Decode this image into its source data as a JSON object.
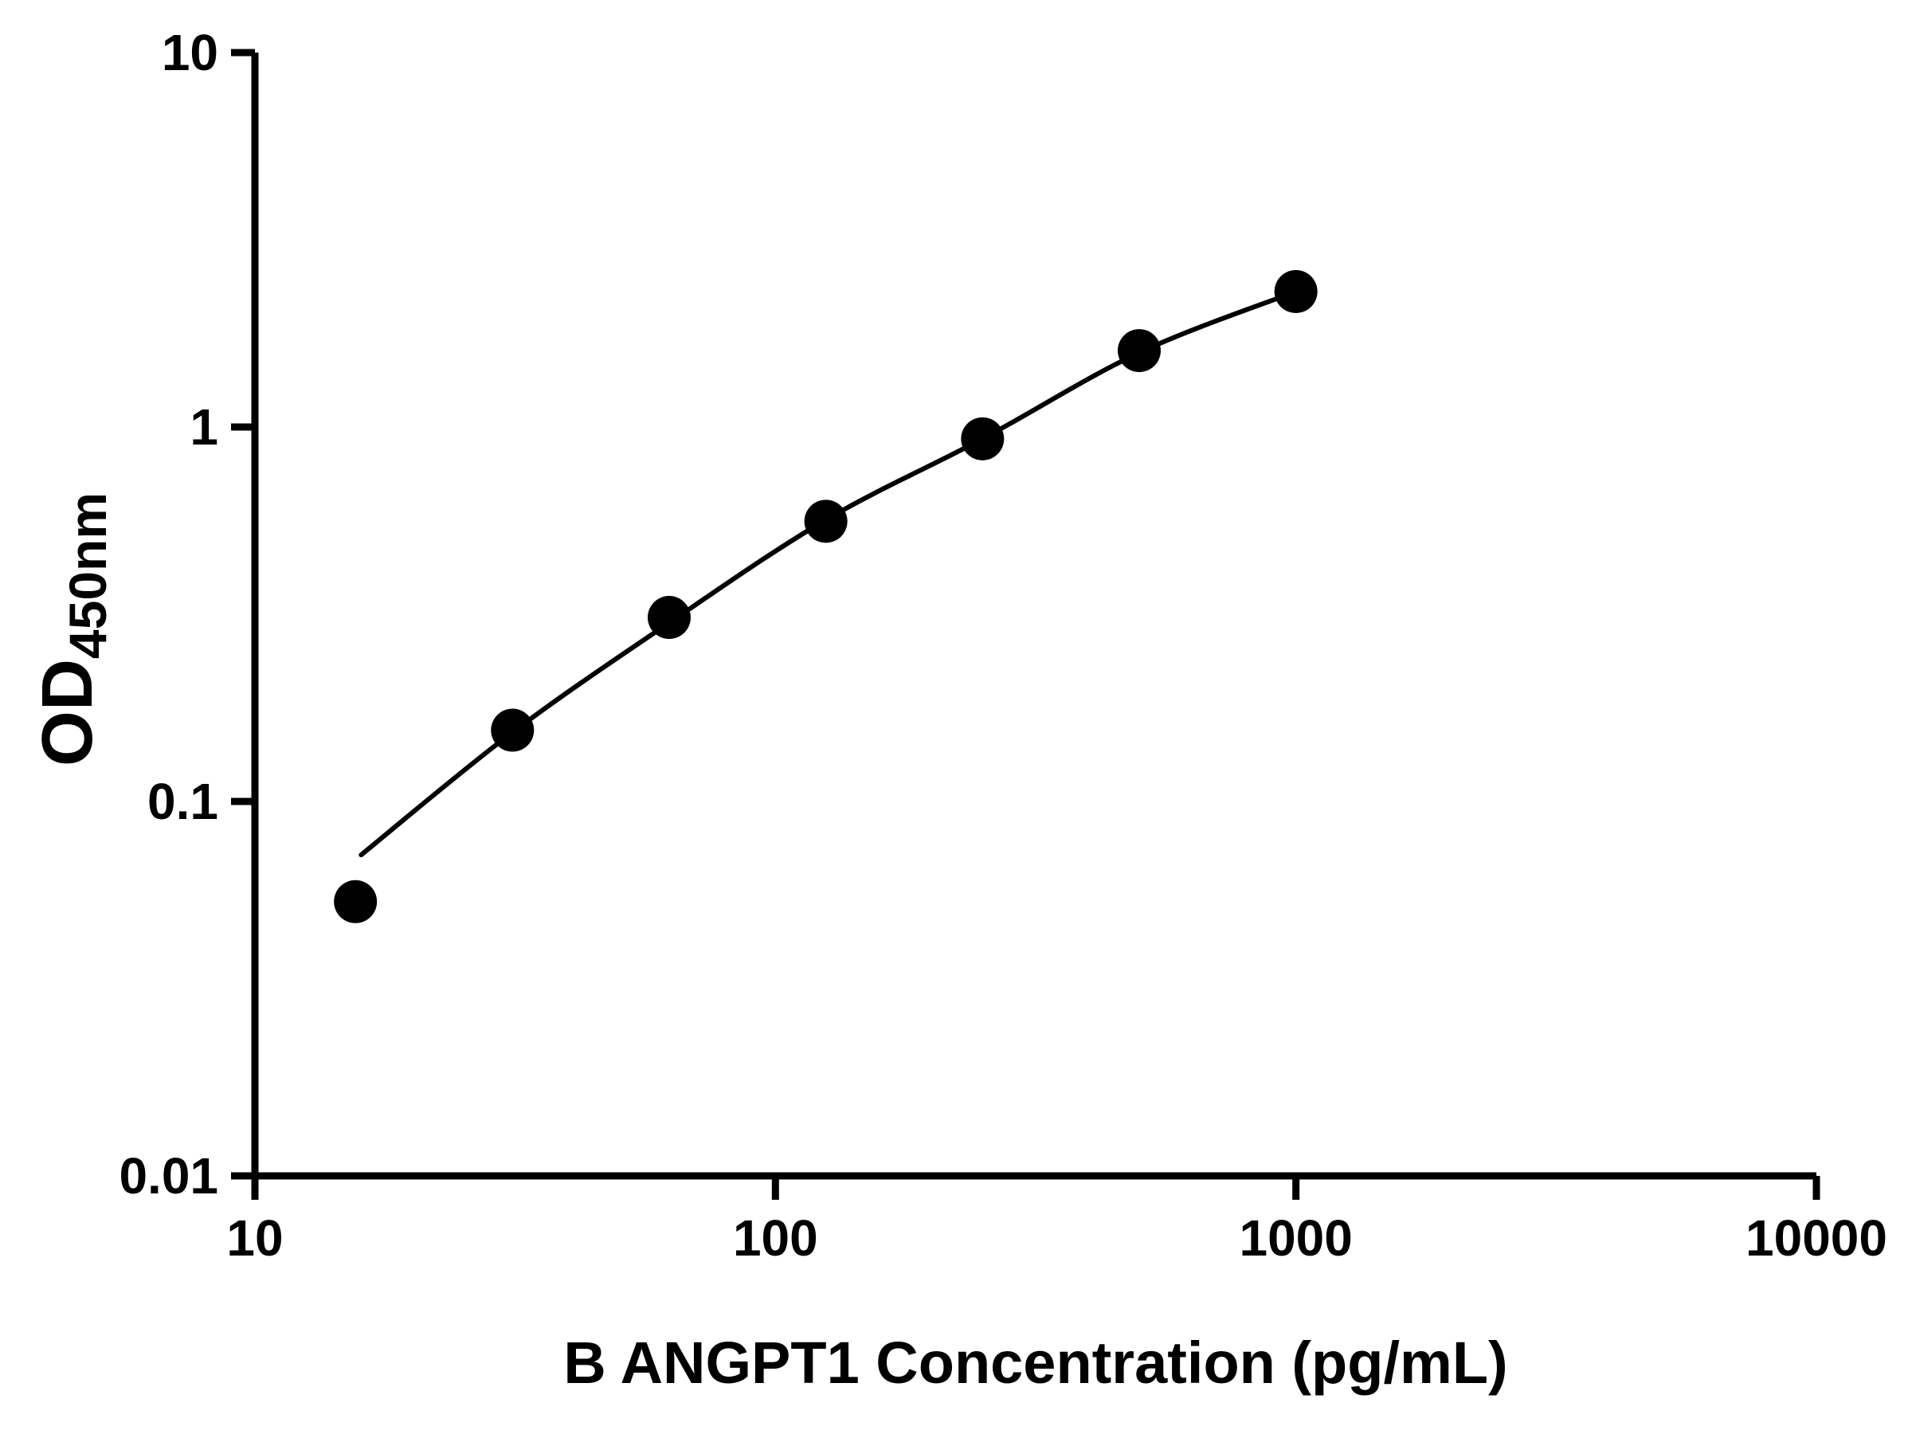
{
  "chart_data": {
    "type": "scatter",
    "title": "",
    "xlabel": "B ANGPT1 Concentration (pg/mL)",
    "ylabel": "OD450nm",
    "ylabel_main": "OD",
    "ylabel_sub": "450nm",
    "xscale": "log",
    "yscale": "log",
    "xlim": [
      10,
      10000
    ],
    "ylim": [
      0.01,
      10
    ],
    "grid": false,
    "legend": null,
    "x_ticks": [
      {
        "value": 10,
        "label": "10"
      },
      {
        "value": 100,
        "label": "100"
      },
      {
        "value": 1000,
        "label": "1000"
      },
      {
        "value": 10000,
        "label": "10000"
      }
    ],
    "y_ticks": [
      {
        "value": 0.01,
        "label": "0.01"
      },
      {
        "value": 0.1,
        "label": "0.1"
      },
      {
        "value": 1,
        "label": "1"
      },
      {
        "value": 10,
        "label": "10"
      }
    ],
    "x": [
      15.6,
      31.25,
      62.5,
      125,
      250,
      500,
      1000
    ],
    "y": [
      0.054,
      0.155,
      0.31,
      0.56,
      0.93,
      1.6,
      2.3
    ],
    "fit_curve": [
      [
        16,
        0.072
      ],
      [
        31.25,
        0.153
      ],
      [
        62.5,
        0.3
      ],
      [
        125,
        0.565
      ],
      [
        250,
        0.93
      ],
      [
        500,
        1.58
      ],
      [
        1000,
        2.3
      ]
    ],
    "marker_color": "#000000",
    "line_color": "#000000",
    "axis_color": "#000000",
    "background_color": "#ffffff"
  }
}
